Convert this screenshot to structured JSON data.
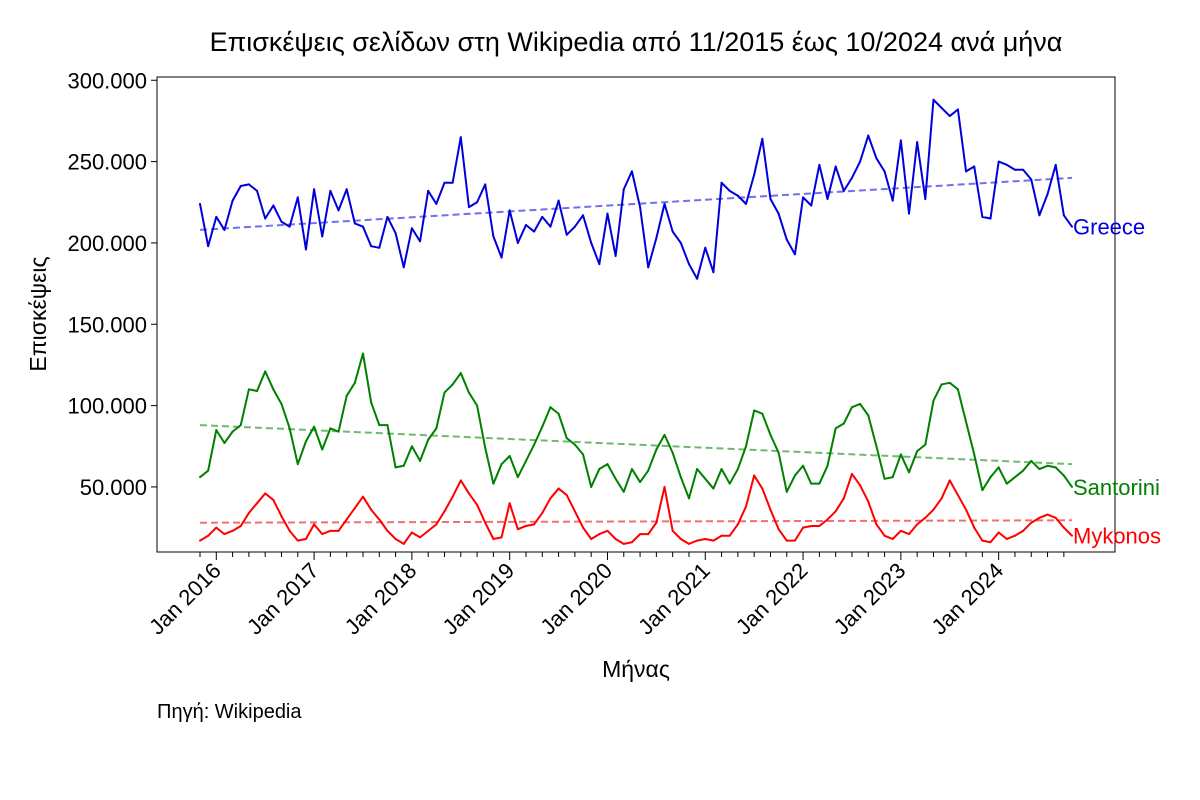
{
  "chart_data": {
    "type": "line",
    "title": "Επισκέψεις σελίδων στη Wikipedia από 11/2015 έως 10/2024 ανά μήνα",
    "xlabel": "Μήνας",
    "ylabel": "Επισκέψεις",
    "source": "Πηγή: Wikipedia",
    "x_start": "2015-11",
    "x_end": "2024-10",
    "x_ticks": [
      "Jan 2016",
      "Jan 2017",
      "Jan 2018",
      "Jan 2019",
      "Jan 2020",
      "Jan 2021",
      "Jan 2022",
      "Jan 2023",
      "Jan 2024"
    ],
    "y_ticks": [
      {
        "value": 50000,
        "label": "50.000"
      },
      {
        "value": 100000,
        "label": "100.000"
      },
      {
        "value": 150000,
        "label": "150.000"
      },
      {
        "value": 200000,
        "label": "200.000"
      },
      {
        "value": 250000,
        "label": "250.000"
      },
      {
        "value": 300000,
        "label": "300.000"
      }
    ],
    "ylim": [
      10000,
      302000
    ],
    "grid": false,
    "legend": "none",
    "series": [
      {
        "name": "Greece",
        "color": "#0000dd",
        "trend_color": "#6f6ff0",
        "trend": [
          208000,
          240000
        ],
        "values": [
          224000,
          198000,
          216000,
          208000,
          226000,
          235000,
          236000,
          232000,
          215000,
          223000,
          213000,
          210000,
          228000,
          196000,
          233000,
          204000,
          232000,
          220000,
          233000,
          212000,
          210000,
          198000,
          197000,
          216000,
          206000,
          185000,
          209000,
          201000,
          232000,
          224000,
          237000,
          237000,
          265000,
          222000,
          225000,
          236000,
          204000,
          191000,
          220000,
          200000,
          211000,
          207000,
          216000,
          210000,
          226000,
          205000,
          210000,
          217000,
          200000,
          187000,
          218000,
          192000,
          233000,
          244000,
          222000,
          185000,
          203000,
          224000,
          207000,
          200000,
          187000,
          178000,
          197000,
          182000,
          237000,
          232000,
          229000,
          224000,
          242000,
          264000,
          227000,
          218000,
          202000,
          193000,
          228000,
          223000,
          248000,
          227000,
          247000,
          232000,
          240000,
          250000,
          266000,
          252000,
          244000,
          226000,
          263000,
          218000,
          262000,
          227000,
          288000,
          283000,
          278000,
          282000,
          244000,
          247000,
          216000,
          215000,
          250000,
          248000,
          245000,
          245000,
          239000,
          217000,
          230000,
          248000,
          217000,
          210000
        ]
      },
      {
        "name": "Santorini",
        "color": "#008000",
        "trend_color": "#6fb86f",
        "trend": [
          88000,
          64000
        ],
        "values": [
          56000,
          60000,
          85000,
          77000,
          84000,
          88000,
          110000,
          109000,
          121000,
          110000,
          101000,
          86000,
          64000,
          78000,
          87000,
          73000,
          86000,
          84000,
          106000,
          114000,
          132000,
          102000,
          88000,
          88000,
          62000,
          63000,
          75000,
          66000,
          79000,
          86000,
          108000,
          113000,
          120000,
          108000,
          100000,
          74000,
          52000,
          64000,
          69000,
          56000,
          66000,
          76000,
          87000,
          99000,
          95000,
          80000,
          76000,
          70000,
          50000,
          61000,
          64000,
          55000,
          47000,
          61000,
          53000,
          60000,
          73000,
          82000,
          71000,
          56000,
          43000,
          61000,
          55000,
          49000,
          61000,
          52000,
          61000,
          75000,
          97000,
          95000,
          82000,
          71000,
          47000,
          57000,
          63000,
          52000,
          52000,
          63000,
          86000,
          89000,
          99000,
          101000,
          94000,
          75000,
          55000,
          56000,
          70000,
          59000,
          72000,
          76000,
          103000,
          113000,
          114000,
          110000,
          90000,
          70000,
          48000,
          56000,
          62000,
          52000,
          56000,
          60000,
          66000,
          61000,
          63000,
          62000,
          57000,
          50000
        ]
      },
      {
        "name": "Mykonos",
        "color": "#ff0000",
        "trend_color": "#f07070",
        "trend": [
          28000,
          29500
        ],
        "values": [
          17000,
          20000,
          25000,
          21000,
          23000,
          26000,
          34000,
          40000,
          46000,
          42000,
          32000,
          23000,
          17000,
          18000,
          27000,
          21000,
          23000,
          23000,
          30000,
          37000,
          44000,
          36000,
          30000,
          23000,
          18000,
          15000,
          22000,
          19000,
          23000,
          27000,
          35000,
          44000,
          54000,
          46000,
          39000,
          28000,
          18000,
          19000,
          40000,
          24000,
          26000,
          27000,
          34000,
          43000,
          49000,
          45000,
          35000,
          25000,
          18000,
          21000,
          23000,
          18000,
          15000,
          16000,
          21000,
          21000,
          28000,
          50000,
          23000,
          18000,
          15000,
          17000,
          18000,
          17000,
          20000,
          20000,
          27000,
          38000,
          57000,
          49000,
          36000,
          24000,
          17000,
          17000,
          25000,
          26000,
          26000,
          30000,
          35000,
          43000,
          58000,
          51000,
          41000,
          27000,
          20000,
          18000,
          23000,
          21000,
          27000,
          31000,
          36000,
          43000,
          54000,
          45000,
          36000,
          25000,
          17000,
          16000,
          22000,
          18000,
          20000,
          23000,
          28000,
          31000,
          33000,
          31000,
          25000,
          20000
        ]
      }
    ]
  }
}
